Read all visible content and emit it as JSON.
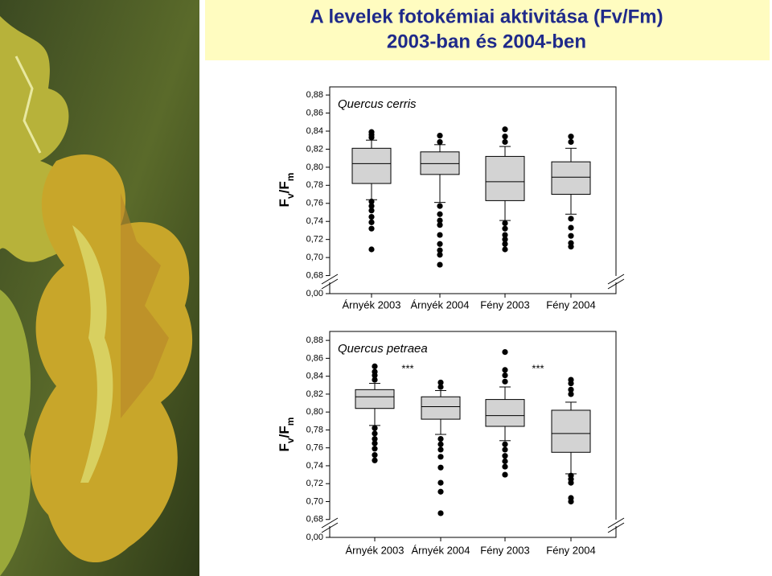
{
  "title": [
    "A levelek fotokémiai aktivitása (Fv/Fm)",
    "2003-ban és 2004-ben"
  ],
  "chart_data": [
    {
      "type": "box",
      "title": "Quercus cerris",
      "categories": [
        "Árnyék 2003",
        "Árnyék 2004",
        "Fény 2003",
        "Fény 2004"
      ],
      "ylabel": [
        {
          "text": "F"
        },
        {
          "text": "v",
          "sub": true
        },
        {
          "text": "/F"
        },
        {
          "text": "m",
          "sub": true
        }
      ],
      "ylim": [
        0,
        0.889
      ],
      "axis_break": [
        0,
        0.66
      ],
      "yticks": [
        {
          "value": 0,
          "label": "0,00"
        },
        {
          "value": 0.68,
          "label": "0,68"
        },
        {
          "value": 0.7,
          "label": "0,70"
        },
        {
          "value": 0.72,
          "label": "0,72"
        },
        {
          "value": 0.74,
          "label": "0,74"
        },
        {
          "value": 0.76,
          "label": "0,76"
        },
        {
          "value": 0.78,
          "label": "0,78"
        },
        {
          "value": 0.8,
          "label": "0,80"
        },
        {
          "value": 0.82,
          "label": "0,82"
        },
        {
          "value": 0.84,
          "label": "0,84"
        },
        {
          "value": 0.86,
          "label": "0,86"
        },
        {
          "value": 0.88,
          "label": "0,88"
        }
      ],
      "color": "#d3d3d3",
      "boxes": [
        {
          "whislo": 0.764,
          "q1": 0.782,
          "med": 0.804,
          "q3": 0.821,
          "whishi": 0.83,
          "fliers": [
            0.839,
            0.836,
            0.833,
            0.762,
            0.757,
            0.752,
            0.745,
            0.739,
            0.732,
            0.709
          ]
        },
        {
          "whislo": 0.761,
          "q1": 0.792,
          "med": 0.804,
          "q3": 0.817,
          "whishi": 0.825,
          "fliers": [
            0.835,
            0.828,
            0.757,
            0.748,
            0.741,
            0.736,
            0.725,
            0.715,
            0.708,
            0.703,
            0.692
          ]
        },
        {
          "whislo": 0.741,
          "q1": 0.763,
          "med": 0.784,
          "q3": 0.812,
          "whishi": 0.823,
          "fliers": [
            0.842,
            0.834,
            0.828,
            0.738,
            0.732,
            0.725,
            0.72,
            0.715,
            0.709
          ]
        },
        {
          "whislo": 0.748,
          "q1": 0.77,
          "med": 0.789,
          "q3": 0.806,
          "whishi": 0.821,
          "fliers": [
            0.834,
            0.828,
            0.743,
            0.733,
            0.724,
            0.716,
            0.712
          ]
        }
      ]
    },
    {
      "type": "box",
      "title": "Quercus petraea",
      "categories": [
        "Árnyék 2003",
        "Árnyék 2004",
        "Fény 2003",
        "Fény 2004"
      ],
      "ylabel": [
        {
          "text": "F"
        },
        {
          "text": "v",
          "sub": true
        },
        {
          "text": "/F"
        },
        {
          "text": "m",
          "sub": true
        }
      ],
      "ylim": [
        0,
        0.89
      ],
      "axis_break": [
        0,
        0.66
      ],
      "yticks": [
        {
          "value": 0,
          "label": "0,00"
        },
        {
          "value": 0.68,
          "label": "0,68"
        },
        {
          "value": 0.7,
          "label": "0,70"
        },
        {
          "value": 0.72,
          "label": "0,72"
        },
        {
          "value": 0.74,
          "label": "0,74"
        },
        {
          "value": 0.76,
          "label": "0,76"
        },
        {
          "value": 0.78,
          "label": "0,78"
        },
        {
          "value": 0.8,
          "label": "0,80"
        },
        {
          "value": 0.82,
          "label": "0,82"
        },
        {
          "value": 0.84,
          "label": "0,84"
        },
        {
          "value": 0.86,
          "label": "0,86"
        },
        {
          "value": 0.88,
          "label": "0,88"
        }
      ],
      "color": "#d3d3d3",
      "annotations": [
        "***",
        "***"
      ],
      "boxes": [
        {
          "whislo": 0.785,
          "q1": 0.804,
          "med": 0.817,
          "q3": 0.825,
          "whishi": 0.832,
          "fliers": [
            0.851,
            0.845,
            0.841,
            0.836,
            0.782,
            0.776,
            0.77,
            0.765,
            0.759,
            0.752,
            0.746
          ]
        },
        {
          "whislo": 0.775,
          "q1": 0.792,
          "med": 0.806,
          "q3": 0.817,
          "whishi": 0.824,
          "fliers": [
            0.833,
            0.828,
            0.77,
            0.764,
            0.758,
            0.75,
            0.738,
            0.721,
            0.711,
            0.687
          ]
        },
        {
          "whislo": 0.768,
          "q1": 0.784,
          "med": 0.796,
          "q3": 0.814,
          "whishi": 0.828,
          "fliers": [
            0.867,
            0.847,
            0.841,
            0.834,
            0.764,
            0.758,
            0.751,
            0.745,
            0.739,
            0.73
          ]
        },
        {
          "whislo": 0.731,
          "q1": 0.755,
          "med": 0.776,
          "q3": 0.802,
          "whishi": 0.811,
          "fliers": [
            0.836,
            0.832,
            0.825,
            0.82,
            0.729,
            0.725,
            0.721,
            0.704,
            0.7
          ]
        }
      ]
    }
  ]
}
